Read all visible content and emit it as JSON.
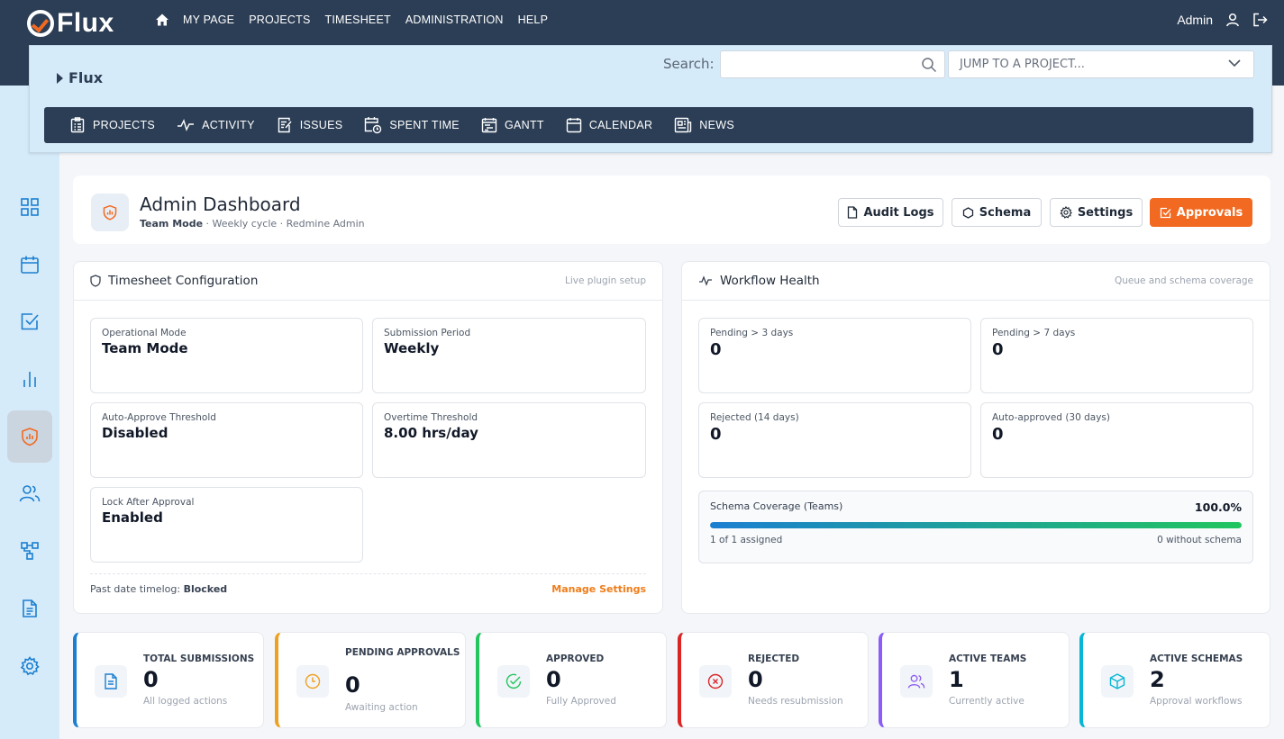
{
  "brand": {
    "name": "Flux"
  },
  "topnav": {
    "items": [
      "MY PAGE",
      "PROJECTS",
      "TIMESHEET",
      "ADMINISTRATION",
      "HELP"
    ]
  },
  "user": {
    "name": "Admin"
  },
  "project": {
    "name": "Flux"
  },
  "search": {
    "label": "Search:",
    "value": "",
    "placeholder": ""
  },
  "jump": {
    "placeholder": "JUMP TO A PROJECT..."
  },
  "projnav": {
    "items": [
      "PROJECTS",
      "ACTIVITY",
      "ISSUES",
      "SPENT TIME",
      "GANTT",
      "CALENDAR",
      "NEWS"
    ]
  },
  "dashboard": {
    "title": "Admin Dashboard",
    "subtitle_strong": "Team Mode",
    "subtitle_rest": " · Weekly cycle · Redmine Admin",
    "buttons": {
      "audit": "Audit Logs",
      "schema": "Schema",
      "settings": "Settings",
      "approvals": "Approvals"
    }
  },
  "config": {
    "title": "Timesheet Configuration",
    "note": "Live plugin setup",
    "tiles": [
      {
        "label": "Operational Mode",
        "value": "Team Mode"
      },
      {
        "label": "Submission Period",
        "value": "Weekly"
      },
      {
        "label": "Auto-Approve Threshold",
        "value": "Disabled"
      },
      {
        "label": "Overtime Threshold",
        "value": "8.00 hrs/day"
      },
      {
        "label": "Lock After Approval",
        "value": "Enabled"
      }
    ],
    "footer_label": "Past date timelog:",
    "footer_value": "Blocked",
    "manage_link": "Manage Settings"
  },
  "health": {
    "title": "Workflow Health",
    "note": "Queue and schema coverage",
    "tiles": [
      {
        "label": "Pending > 3 days",
        "value": "0"
      },
      {
        "label": "Pending > 7 days",
        "value": "0"
      },
      {
        "label": "Rejected (14 days)",
        "value": "0"
      },
      {
        "label": "Auto-approved (30 days)",
        "value": "0"
      }
    ],
    "coverage": {
      "label": "Schema Coverage (Teams)",
      "percent_text": "100.0%",
      "percent": 100,
      "assigned": "1 of 1 assigned",
      "without": "0 without schema"
    }
  },
  "stats": [
    {
      "label": "TOTAL SUBMISSIONS",
      "value": "0",
      "sub": "All logged actions",
      "color": "#1b7fd1"
    },
    {
      "label": "PENDING APPROVALS",
      "value": "0",
      "sub": "Awaiting action",
      "color": "#f0a020"
    },
    {
      "label": "APPROVED",
      "value": "0",
      "sub": "Fully Approved",
      "color": "#22c55e"
    },
    {
      "label": "REJECTED",
      "value": "0",
      "sub": "Needs resubmission",
      "color": "#dc2626"
    },
    {
      "label": "ACTIVE TEAMS",
      "value": "1",
      "sub": "Currently active",
      "color": "#8b5cf6"
    },
    {
      "label": "ACTIVE SCHEMAS",
      "value": "2",
      "sub": "Approval workflows",
      "color": "#06b6d4"
    }
  ]
}
